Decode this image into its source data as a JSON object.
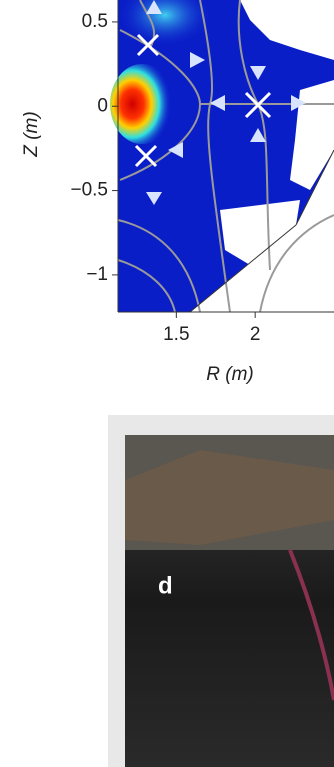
{
  "chart_data": {
    "type": "field",
    "xlabel": "R (m)",
    "ylabel": "Z (m)",
    "xlim": [
      1.13,
      2.5
    ],
    "ylim": [
      -1.22,
      0.63
    ],
    "xticks": [
      1.5,
      2
    ],
    "yticks": [
      0.5,
      0,
      {
        "value": -0.5,
        "label": "−0.5"
      },
      {
        "value": -1,
        "label": "−1"
      }
    ]
  },
  "panel_d": {
    "label": "d"
  }
}
